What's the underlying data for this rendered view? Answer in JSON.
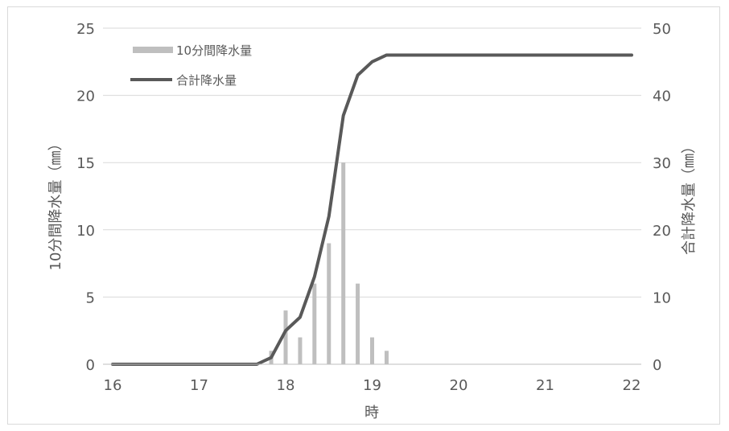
{
  "chart_data": {
    "type": "bar+line",
    "xlabel": "時",
    "ylabel_left": "10分間降水量（㎜）",
    "ylabel_right": "合計降水量（㎜）",
    "xlim": [
      16,
      22
    ],
    "ylim_left": [
      0,
      25
    ],
    "ylim_right": [
      0,
      50
    ],
    "x_ticks": [
      "16",
      "17",
      "18",
      "19",
      "20",
      "21",
      "22"
    ],
    "y_ticks_left": [
      "0",
      "5",
      "10",
      "15",
      "20",
      "25"
    ],
    "y_ticks_right": [
      "0",
      "10",
      "20",
      "30",
      "40",
      "50"
    ],
    "grid": true,
    "legend_position": "top-left",
    "colors": {
      "bar": "#bfbfbf",
      "line": "#595959",
      "grid": "#d9d9d9",
      "text": "#595959"
    },
    "series": [
      {
        "name": "10分間降水量",
        "type": "bar",
        "axis": "left",
        "x": [
          17.833,
          18.0,
          18.167,
          18.333,
          18.5,
          18.667,
          18.833,
          19.0,
          19.167
        ],
        "values": [
          1,
          4,
          2,
          6,
          9,
          15,
          6,
          2,
          1
        ]
      },
      {
        "name": "合計降水量",
        "type": "line",
        "axis": "right",
        "x": [
          16.0,
          17.667,
          17.833,
          18.0,
          18.167,
          18.333,
          18.5,
          18.667,
          18.833,
          19.0,
          19.167,
          22.0
        ],
        "values": [
          0,
          0,
          1,
          5,
          7,
          13,
          22,
          37,
          43,
          45,
          46,
          46
        ]
      }
    ]
  }
}
